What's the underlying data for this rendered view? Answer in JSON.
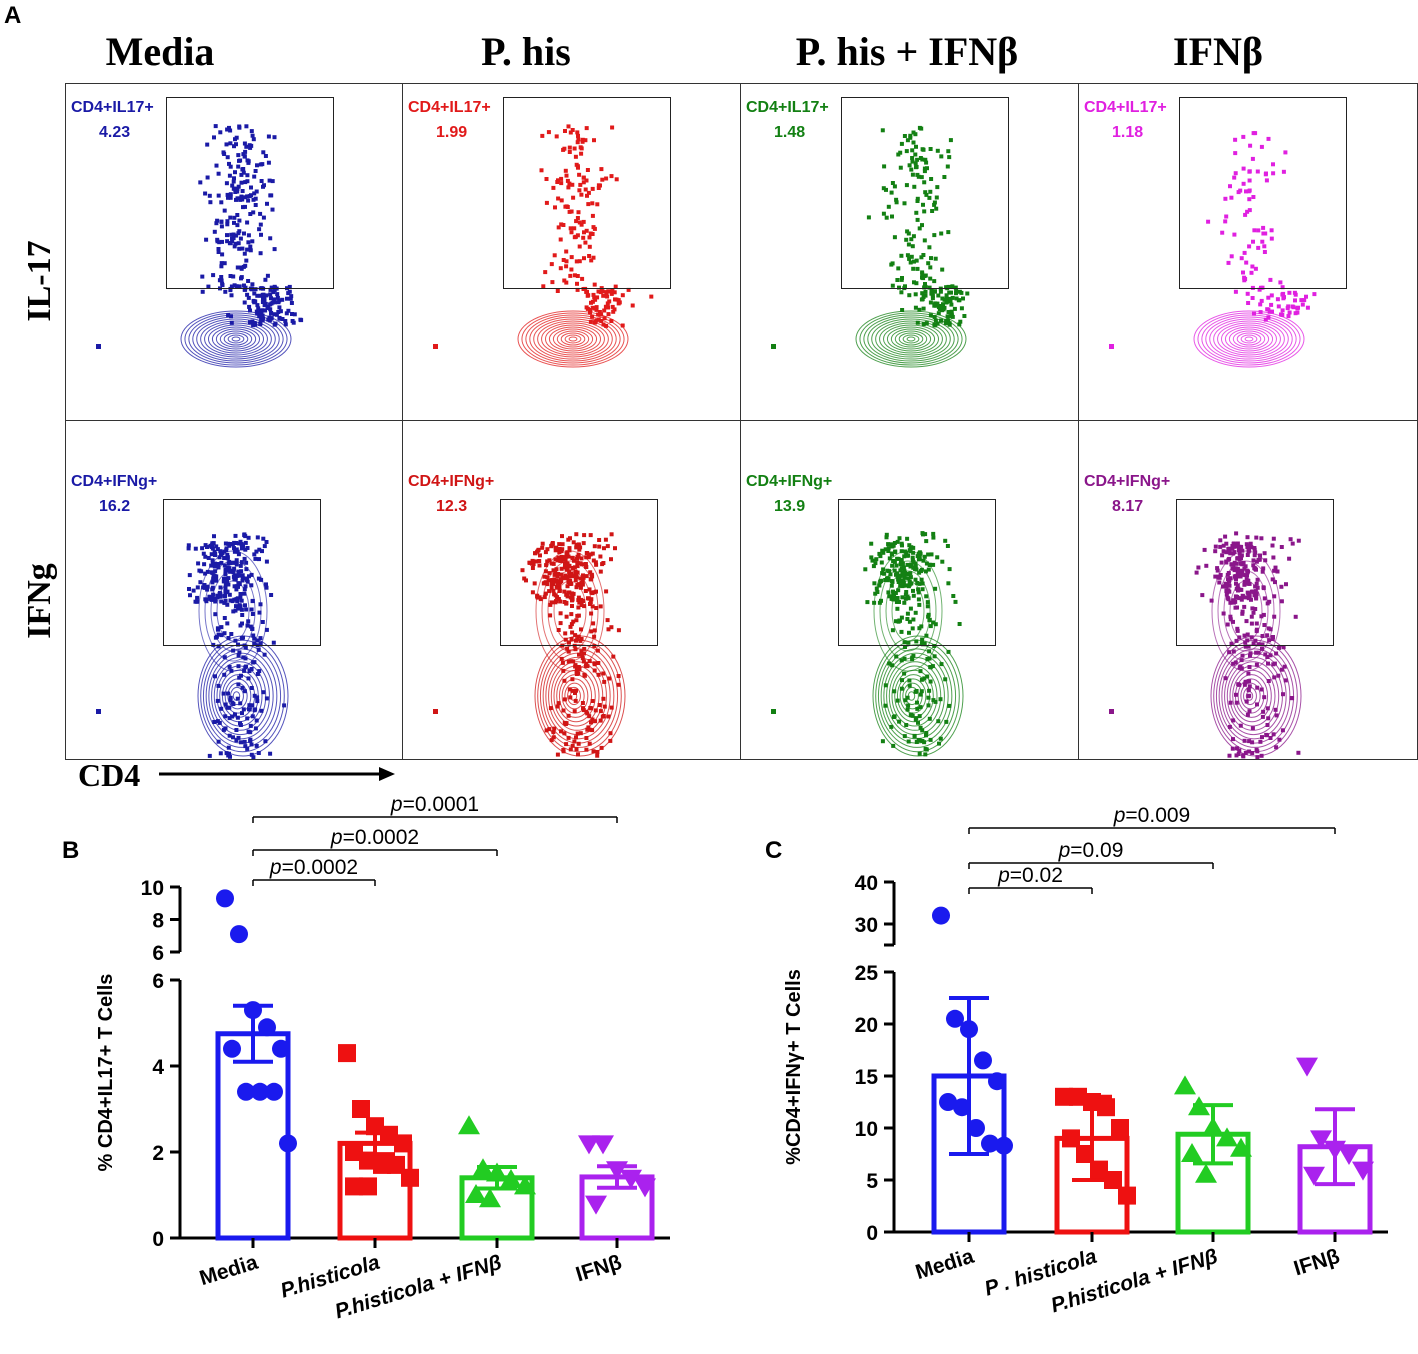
{
  "panel_a": {
    "letter": "A",
    "columns": [
      "Media",
      "P. his",
      "P. his + IFNβ",
      "IFNβ"
    ],
    "rows": [
      "IL-17",
      "IFNg"
    ],
    "x_axis_label": "CD4",
    "colors": [
      "#1a1aa6",
      "#e11a1a",
      "#138013",
      "#e020e0"
    ],
    "colors_row2": [
      "#1a1aa6",
      "#d01515",
      "#138013",
      "#8a168a"
    ],
    "gates": [
      [
        {
          "label": "CD4+IL17+",
          "value": "4.23"
        },
        {
          "label": "CD4+IL17+",
          "value": "1.99"
        },
        {
          "label": "CD4+IL17+",
          "value": "1.48"
        },
        {
          "label": "CD4+IL17+",
          "value": "1.18"
        }
      ],
      [
        {
          "label": "CD4+IFNg+",
          "value": "16.2"
        },
        {
          "label": "CD4+IFNg+",
          "value": "12.3"
        },
        {
          "label": "CD4+IFNg+",
          "value": "13.9"
        },
        {
          "label": "CD4+IFNg+",
          "value": "8.17"
        }
      ]
    ]
  },
  "chart_data": [
    {
      "panel": "B",
      "type": "bar",
      "ylabel": "% CD4+IL17+ T Cells",
      "categories": [
        "Media",
        "P.histicola",
        "P.histicola + IFNβ",
        "IFNβ"
      ],
      "means": [
        4.75,
        2.2,
        1.4,
        1.42
      ],
      "sem": [
        0.65,
        0.25,
        0.25,
        0.25
      ],
      "colors": [
        "#1a1aee",
        "#ee1111",
        "#22cc22",
        "#aa22ee"
      ],
      "markers": [
        "circle",
        "square",
        "triangle-up",
        "triangle-down"
      ],
      "points": [
        [
          9.3,
          7.1,
          5.3,
          4.9,
          4.4,
          4.4,
          3.4,
          3.4,
          3.4,
          2.2
        ],
        [
          4.3,
          3.0,
          2.6,
          2.4,
          2.2,
          2.0,
          1.8,
          1.7,
          1.7,
          1.4,
          1.2,
          1.2
        ],
        [
          2.6,
          1.6,
          1.5,
          1.35,
          1.2,
          1.0,
          0.9
        ],
        [
          2.2,
          2.2,
          1.6,
          1.4,
          1.2,
          0.8
        ]
      ],
      "y_ticks_lower": [
        0,
        2,
        4,
        6
      ],
      "y_ticks_upper": [
        6,
        8,
        10
      ],
      "comparisons": [
        {
          "from": 0,
          "to": 1,
          "text": "p=0.0002"
        },
        {
          "from": 0,
          "to": 2,
          "text": "p=0.0002"
        },
        {
          "from": 0,
          "to": 3,
          "text": "p=0.0001"
        }
      ]
    },
    {
      "panel": "C",
      "type": "bar",
      "ylabel": "%CD4+IFNγ+ T Cells",
      "categories": [
        "Media",
        "P . histicola",
        "P.histicola + IFNβ",
        "IFNβ"
      ],
      "means": [
        15.0,
        9.0,
        9.4,
        8.2
      ],
      "sd": [
        7.5,
        4.0,
        2.8,
        3.6
      ],
      "colors": [
        "#1a1aee",
        "#ee1111",
        "#22cc22",
        "#aa22ee"
      ],
      "markers": [
        "circle",
        "square",
        "triangle-up",
        "triangle-down"
      ],
      "points": [
        [
          32.0,
          20.5,
          19.5,
          16.5,
          14.5,
          12.5,
          12.0,
          10.0,
          8.5,
          8.3
        ],
        [
          13.0,
          13.0,
          12.5,
          12.0,
          10.0,
          9.0,
          7.5,
          6.0,
          5.0,
          3.5
        ],
        [
          14.0,
          12.0,
          10.0,
          9.0,
          8.0,
          7.5,
          5.5
        ],
        [
          16.0,
          9.0,
          8.0,
          7.5,
          6.0,
          5.5
        ]
      ],
      "y_ticks_lower": [
        0,
        5,
        10,
        15,
        20,
        25
      ],
      "y_ticks_upper": [
        30,
        40
      ],
      "comparisons": [
        {
          "from": 0,
          "to": 1,
          "text": "p=0.02"
        },
        {
          "from": 0,
          "to": 2,
          "text": "p=0.09"
        },
        {
          "from": 0,
          "to": 3,
          "text": "p=0.009"
        }
      ]
    }
  ]
}
